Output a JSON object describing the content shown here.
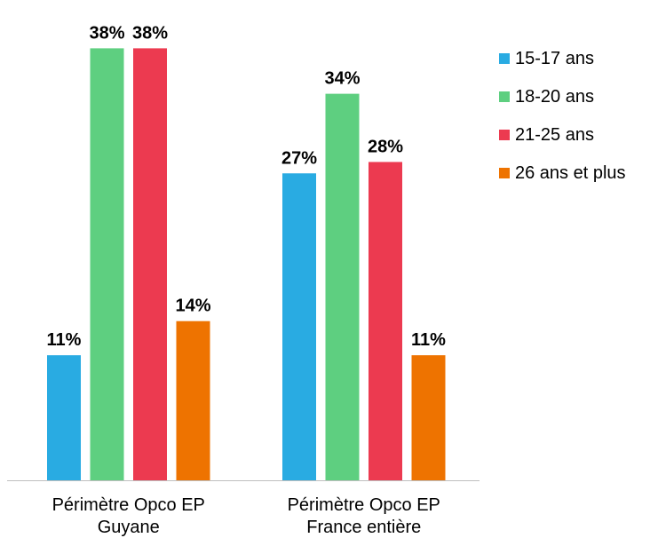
{
  "chart_data": {
    "type": "bar",
    "categories": [
      [
        "Périmètre Opco EP",
        "Guyane"
      ],
      [
        "Périmètre Opco EP",
        "France entière"
      ]
    ],
    "series": [
      {
        "name": "15-17 ans",
        "values": [
          11,
          27
        ],
        "labels": [
          "11%",
          "27%"
        ],
        "color": "#29ABE2"
      },
      {
        "name": "18-20 ans",
        "values": [
          38,
          34
        ],
        "labels": [
          "38%",
          "34%"
        ],
        "color": "#5ECF80"
      },
      {
        "name": "21-25 ans",
        "values": [
          38,
          28
        ],
        "labels": [
          "38%",
          "28%"
        ],
        "color": "#EC3A50"
      },
      {
        "name": "26 ans et plus",
        "values": [
          14,
          11
        ],
        "labels": [
          "14%",
          "11%"
        ],
        "color": "#EE7300"
      }
    ],
    "ylim": [
      0,
      38.5
    ],
    "grid": false,
    "legend_position": "right",
    "axis_color": "#BFBFBF"
  }
}
